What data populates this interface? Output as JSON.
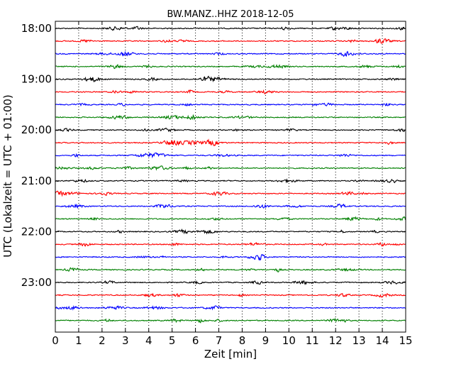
{
  "chart_data": {
    "type": "line",
    "title": "BW.MANZ..HHZ 2018-12-05",
    "xlabel": "Zeit  [min]",
    "ylabel": "UTC (Lokalzeit = UTC + 01:00)",
    "xlim": [
      0,
      15
    ],
    "x_ticks": [
      "0",
      "1",
      "2",
      "3",
      "4",
      "5",
      "6",
      "7",
      "8",
      "9",
      "10",
      "11",
      "12",
      "13",
      "14",
      "15"
    ],
    "y_tick_labels": [
      "18:00",
      "19:00",
      "20:00",
      "21:00",
      "22:00",
      "23:00"
    ],
    "trace_start_hour": 18,
    "traces_per_hour": 4,
    "trace_count": 24,
    "trace_colors": [
      "#000000",
      "#ff0000",
      "#0000ff",
      "#008000"
    ],
    "grid": "vertical-dotted"
  }
}
